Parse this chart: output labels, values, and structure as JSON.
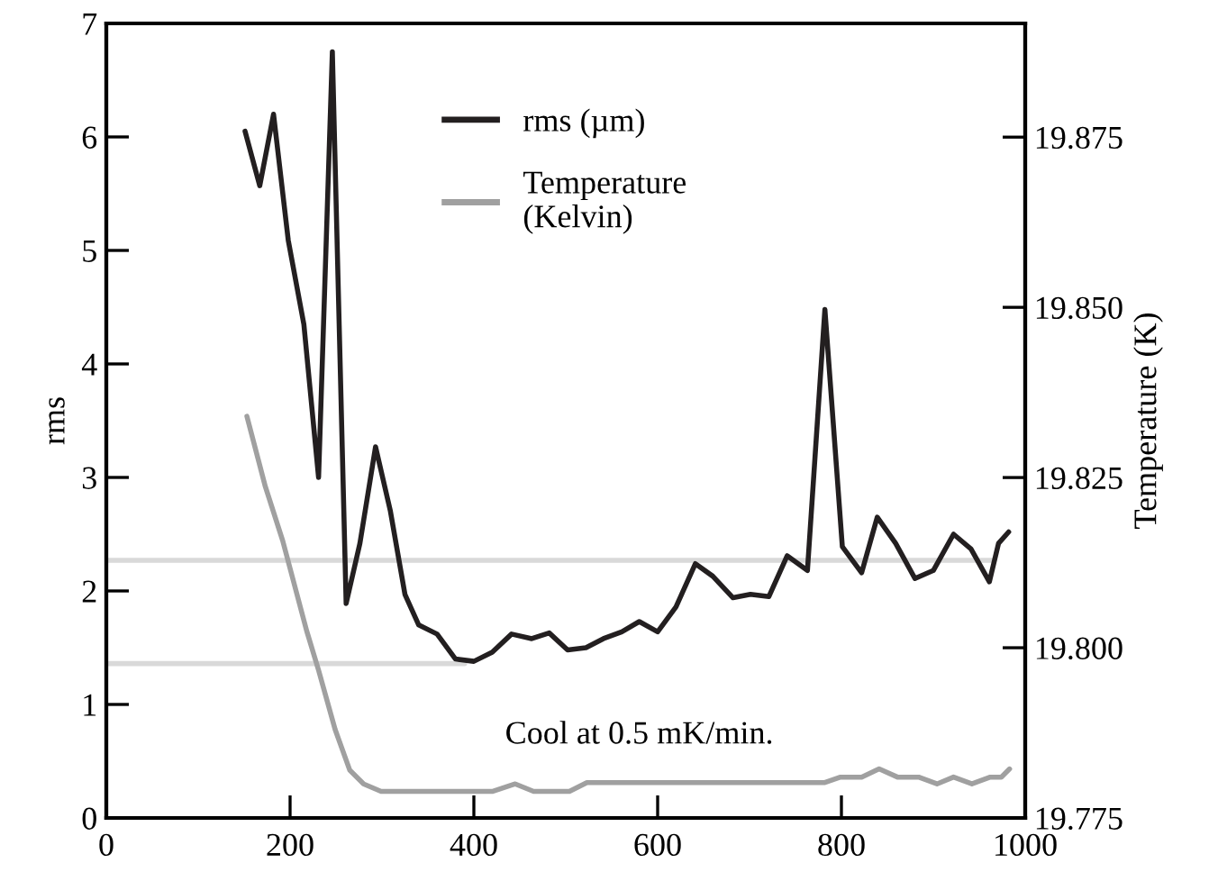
{
  "chart_data": {
    "type": "line",
    "ylabel": "rms",
    "y2label": "Temperature (K)",
    "xlim": [
      0,
      1000
    ],
    "xticks": [
      0,
      200,
      400,
      600,
      800,
      1000
    ],
    "ylim": [
      0,
      7
    ],
    "yticks": [
      0,
      1,
      2,
      3,
      4,
      5,
      6,
      7
    ],
    "y2lim": [
      19.775,
      19.8917
    ],
    "y2ticks": [
      {
        "value": 19.775,
        "label": "19.775"
      },
      {
        "value": 19.8,
        "label": "19.800"
      },
      {
        "value": 19.825,
        "label": "19.825"
      },
      {
        "value": 19.85,
        "label": "19.850"
      },
      {
        "value": 19.875,
        "label": "19.875"
      }
    ],
    "grid": false,
    "legend": "top",
    "marker": "none",
    "line_style": "solid",
    "annotations": [
      "Cool at 0.5 mK/min."
    ],
    "series": [
      {
        "color": "#d9d9d9",
        "x": [
          0,
          966
        ],
        "values": [
          2.27,
          2.27
        ]
      },
      {
        "color": "#d9d9d9",
        "x": [
          0,
          390
        ],
        "values": [
          1.36,
          1.36
        ]
      },
      {
        "name": "rms (µm)",
        "color": "#231f20",
        "x": [
          151,
          167,
          182,
          198,
          215,
          231,
          246,
          261,
          276,
          293,
          309,
          325,
          340,
          360,
          380,
          400,
          420,
          441,
          463,
          482,
          502,
          522,
          541,
          561,
          580,
          600,
          620,
          641,
          660,
          682,
          701,
          721,
          741,
          763,
          782,
          801,
          822,
          839,
          859,
          880,
          900,
          922,
          941,
          961,
          971,
          982
        ],
        "values": [
          6.05,
          5.57,
          6.2,
          5.09,
          4.35,
          3.0,
          6.75,
          1.89,
          2.42,
          3.27,
          2.71,
          1.97,
          1.7,
          1.62,
          1.4,
          1.38,
          1.46,
          1.62,
          1.58,
          1.63,
          1.48,
          1.5,
          1.58,
          1.64,
          1.73,
          1.64,
          1.86,
          2.24,
          2.13,
          1.94,
          1.97,
          1.95,
          2.31,
          2.18,
          4.48,
          2.39,
          2.16,
          2.65,
          2.42,
          2.11,
          2.18,
          2.5,
          2.37,
          2.08,
          2.42,
          2.52
        ]
      },
      {
        "name": "Temperature\n(Kelvin)",
        "color": "#a0a0a0",
        "axis": "y2",
        "x": [
          153,
          173,
          192,
          218,
          231,
          249,
          265,
          280,
          299,
          420,
          445,
          465,
          504,
          523,
          782,
          799,
          822,
          841,
          861,
          884,
          904,
          922,
          942,
          962,
          974,
          983
        ],
        "values": [
          19.834,
          19.8237,
          19.8157,
          19.8025,
          19.7967,
          19.788,
          19.782,
          19.78,
          19.7789,
          19.7789,
          19.78,
          19.7789,
          19.7789,
          19.7802,
          19.7802,
          19.781,
          19.781,
          19.7822,
          19.781,
          19.781,
          19.78,
          19.781,
          19.78,
          19.781,
          19.781,
          19.7822
        ]
      }
    ]
  }
}
